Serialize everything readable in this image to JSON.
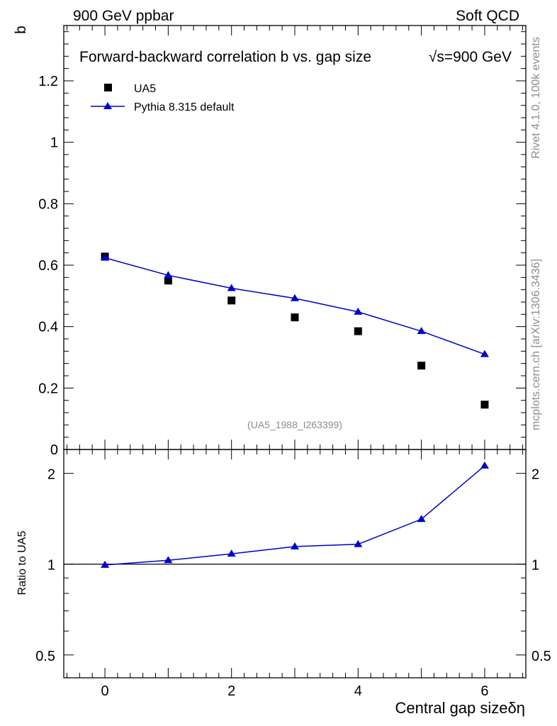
{
  "header": {
    "left": "900 GeV ppbar",
    "right": "Soft QCD"
  },
  "side_labels": {
    "rivet": "Rivet 4.1.0,  100k events",
    "mcplots": "mcplots.cern.ch [arXiv:1306.3436]"
  },
  "colors": {
    "data": "#000000",
    "mc": "#0000cc",
    "side_text": "#8c8c8c"
  },
  "chart_data": [
    {
      "type": "scatter",
      "panel": "main",
      "title": "Forward-backward correlation b  vs. gap size",
      "title_energy": "√s=900 GeV",
      "ylabel": "b",
      "xlim": [
        -0.65,
        6.65
      ],
      "ylim": [
        0,
        1.38
      ],
      "yticks": [
        0,
        0.2,
        0.4,
        0.6,
        0.8,
        1,
        1.2
      ],
      "ytick_labels": [
        "0",
        "0.2",
        "0.4",
        "0.6",
        "0.8",
        "1",
        "1.2"
      ],
      "legend_position": "top-left",
      "watermark": "(UA5_1988_I263399)",
      "series": [
        {
          "name": "UA5",
          "marker": "square",
          "x": [
            0,
            1,
            2,
            3,
            4,
            5,
            6
          ],
          "y": [
            0.628,
            0.55,
            0.485,
            0.43,
            0.385,
            0.273,
            0.146
          ]
        },
        {
          "name": "Pythia 8.315 default",
          "marker": "triangle",
          "line": true,
          "x": [
            0,
            1,
            2,
            3,
            4,
            5,
            6
          ],
          "y": [
            0.624,
            0.567,
            0.525,
            0.492,
            0.448,
            0.385,
            0.31
          ]
        }
      ]
    },
    {
      "type": "line",
      "panel": "ratio",
      "ylabel": "Ratio to UA5",
      "xlabel": "Central gap sizeδη",
      "xlim": [
        -0.65,
        6.65
      ],
      "ylim": [
        0.42,
        2.4
      ],
      "yscale": "log",
      "xticks": [
        0,
        2,
        4,
        6
      ],
      "xtick_labels": [
        "0",
        "2",
        "4",
        "6"
      ],
      "yticks": [
        0.5,
        1,
        2
      ],
      "ytick_labels": [
        "0.5",
        "1",
        "2"
      ],
      "reference_line": 1,
      "series": [
        {
          "name": "Pythia 8.315 default / UA5",
          "marker": "triangle",
          "x": [
            0,
            1,
            2,
            3,
            4,
            5,
            6
          ],
          "y": [
            0.994,
            1.03,
            1.082,
            1.144,
            1.164,
            1.41,
            2.12
          ]
        }
      ]
    }
  ]
}
